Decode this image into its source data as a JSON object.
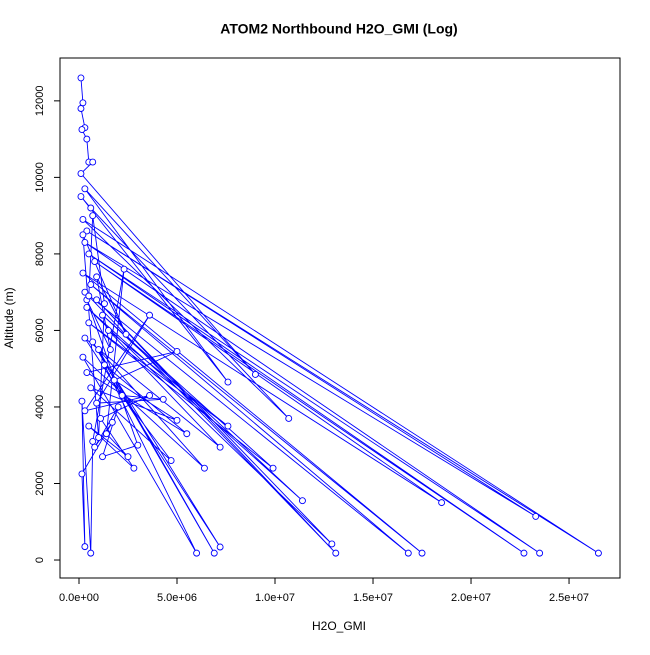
{
  "chart_data": {
    "type": "line",
    "title": "ATOM2 Northbound H2O_GMI (Log)",
    "x_label": "H2O_GMI",
    "y_label": "Altitude (m)",
    "color": "#0000ff",
    "markers": true,
    "xlim": [
      -969000,
      27600000
    ],
    "ylim": [
      -470,
      13120
    ],
    "xticks": [
      {
        "value": 0,
        "label": "0.0e+00"
      },
      {
        "value": 5000000,
        "label": "5.0e+06"
      },
      {
        "value": 10000000,
        "label": "1.0e+07"
      },
      {
        "value": 15000000,
        "label": "1.5e+07"
      },
      {
        "value": 20000000,
        "label": "2.0e+07"
      },
      {
        "value": 25000000,
        "label": "2.5e+07"
      }
    ],
    "yticks": [
      0,
      2000,
      4000,
      6000,
      8000,
      10000,
      12000
    ],
    "series": [
      {
        "name": "H2O_GMI",
        "x": [
          100000,
          200000,
          100000,
          300000,
          150000,
          400000,
          500000,
          700000,
          100000,
          9000000,
          300000,
          7600000,
          100000,
          600000,
          10700000,
          200000,
          26500000,
          400000,
          23300000,
          300000,
          23500000,
          500000,
          22700000,
          800000,
          18500000,
          200000,
          17500000,
          600000,
          16800000,
          300000,
          13100000,
          900000,
          12900000,
          400000,
          11400000,
          1200000,
          9900000,
          500000,
          7600000,
          1500000,
          7200000,
          300000,
          7200000,
          700000,
          6900000,
          1000000,
          6400000,
          200000,
          6000000,
          1300000,
          5500000,
          400000,
          5000000,
          1800000,
          5000000,
          600000,
          4700000,
          2200000,
          4300000,
          900000,
          3600000,
          300000,
          3600000,
          1100000,
          2800000,
          500000,
          2500000,
          1400000,
          2300000,
          700000,
          600000,
          150000,
          300000,
          150000,
          1700000,
          800000,
          2000000,
          1200000,
          3000000,
          400000,
          1600000,
          900000,
          2400000,
          200000,
          1000000,
          1300000,
          700000,
          500000
        ],
        "values": [
          12600,
          11950,
          11800,
          11300,
          11250,
          11000,
          10400,
          10400,
          10100,
          4850,
          9700,
          4650,
          9500,
          9200,
          3700,
          8900,
          180,
          8600,
          1140,
          8300,
          180,
          8000,
          180,
          7800,
          1500,
          7500,
          180,
          7200,
          180,
          7000,
          180,
          6800,
          420,
          6600,
          1550,
          6400,
          2400,
          6200,
          3500,
          6000,
          2950,
          5800,
          340,
          5700,
          180,
          5500,
          2400,
          5300,
          180,
          5100,
          3300,
          4900,
          5450,
          4700,
          3650,
          4500,
          2600,
          4300,
          4200,
          4100,
          6400,
          3900,
          4300,
          3700,
          2400,
          3500,
          2700,
          3300,
          7600,
          3100,
          180,
          4150,
          350,
          2250,
          3600,
          2950,
          4000,
          2700,
          3000,
          6800,
          5500,
          7400,
          5900,
          8500,
          3200,
          6700,
          9000,
          6900
        ]
      }
    ]
  }
}
